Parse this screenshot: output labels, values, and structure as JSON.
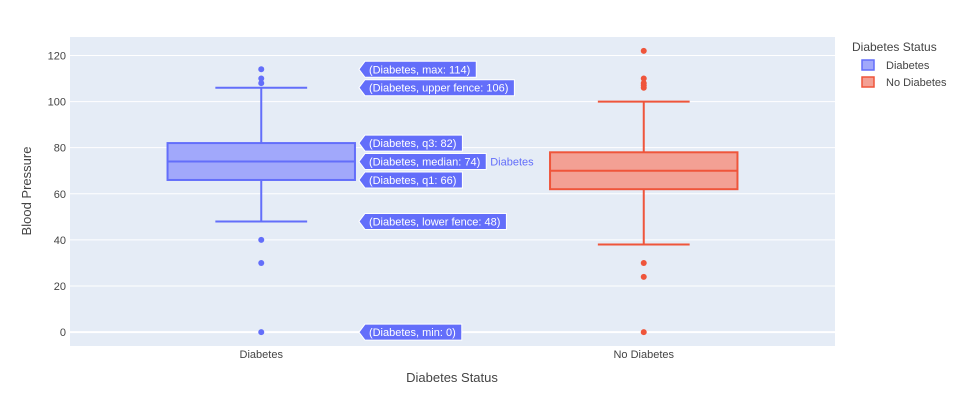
{
  "chart_data": {
    "type": "box",
    "xlabel": "Diabetes Status",
    "ylabel": "Blood Pressure",
    "categories": [
      "Diabetes",
      "No Diabetes"
    ],
    "ylim": [
      -6,
      128
    ],
    "yticks": [
      0,
      20,
      40,
      60,
      80,
      100,
      120
    ],
    "grid": true,
    "legend": {
      "title": "Diabetes Status",
      "position": "top-right",
      "entries": [
        "Diabetes",
        "No Diabetes"
      ]
    },
    "series": [
      {
        "name": "Diabetes",
        "category": "Diabetes",
        "color": "#636efa",
        "fill": "#a1a8fb",
        "min": 0,
        "lower_fence": 48,
        "q1": 66,
        "median": 74,
        "q3": 82,
        "upper_fence": 106,
        "max": 114,
        "outliers": [
          114,
          110,
          108,
          40,
          30,
          0
        ]
      },
      {
        "name": "No Diabetes",
        "category": "No Diabetes",
        "color": "#ef553b",
        "fill": "#f3a094",
        "min": 0,
        "lower_fence": 38,
        "q1": 62,
        "median": 70,
        "q3": 78,
        "upper_fence": 100,
        "max": 122,
        "outliers": [
          122,
          110,
          108,
          107,
          106,
          30,
          24,
          0
        ]
      }
    ],
    "hover_labels": [
      {
        "text": "(Diabetes, max: 114)",
        "value": 114
      },
      {
        "text": "(Diabetes, upper fence: 106)",
        "value": 106
      },
      {
        "text": "(Diabetes, q3: 82)",
        "value": 82
      },
      {
        "text": "(Diabetes, median: 74)",
        "value": 74
      },
      {
        "text": "(Diabetes, q1: 66)",
        "value": 66
      },
      {
        "text": "(Diabetes, lower fence: 48)",
        "value": 48
      },
      {
        "text": "(Diabetes, min: 0)",
        "value": 0
      }
    ],
    "hover_trace_name": "Diabetes"
  }
}
